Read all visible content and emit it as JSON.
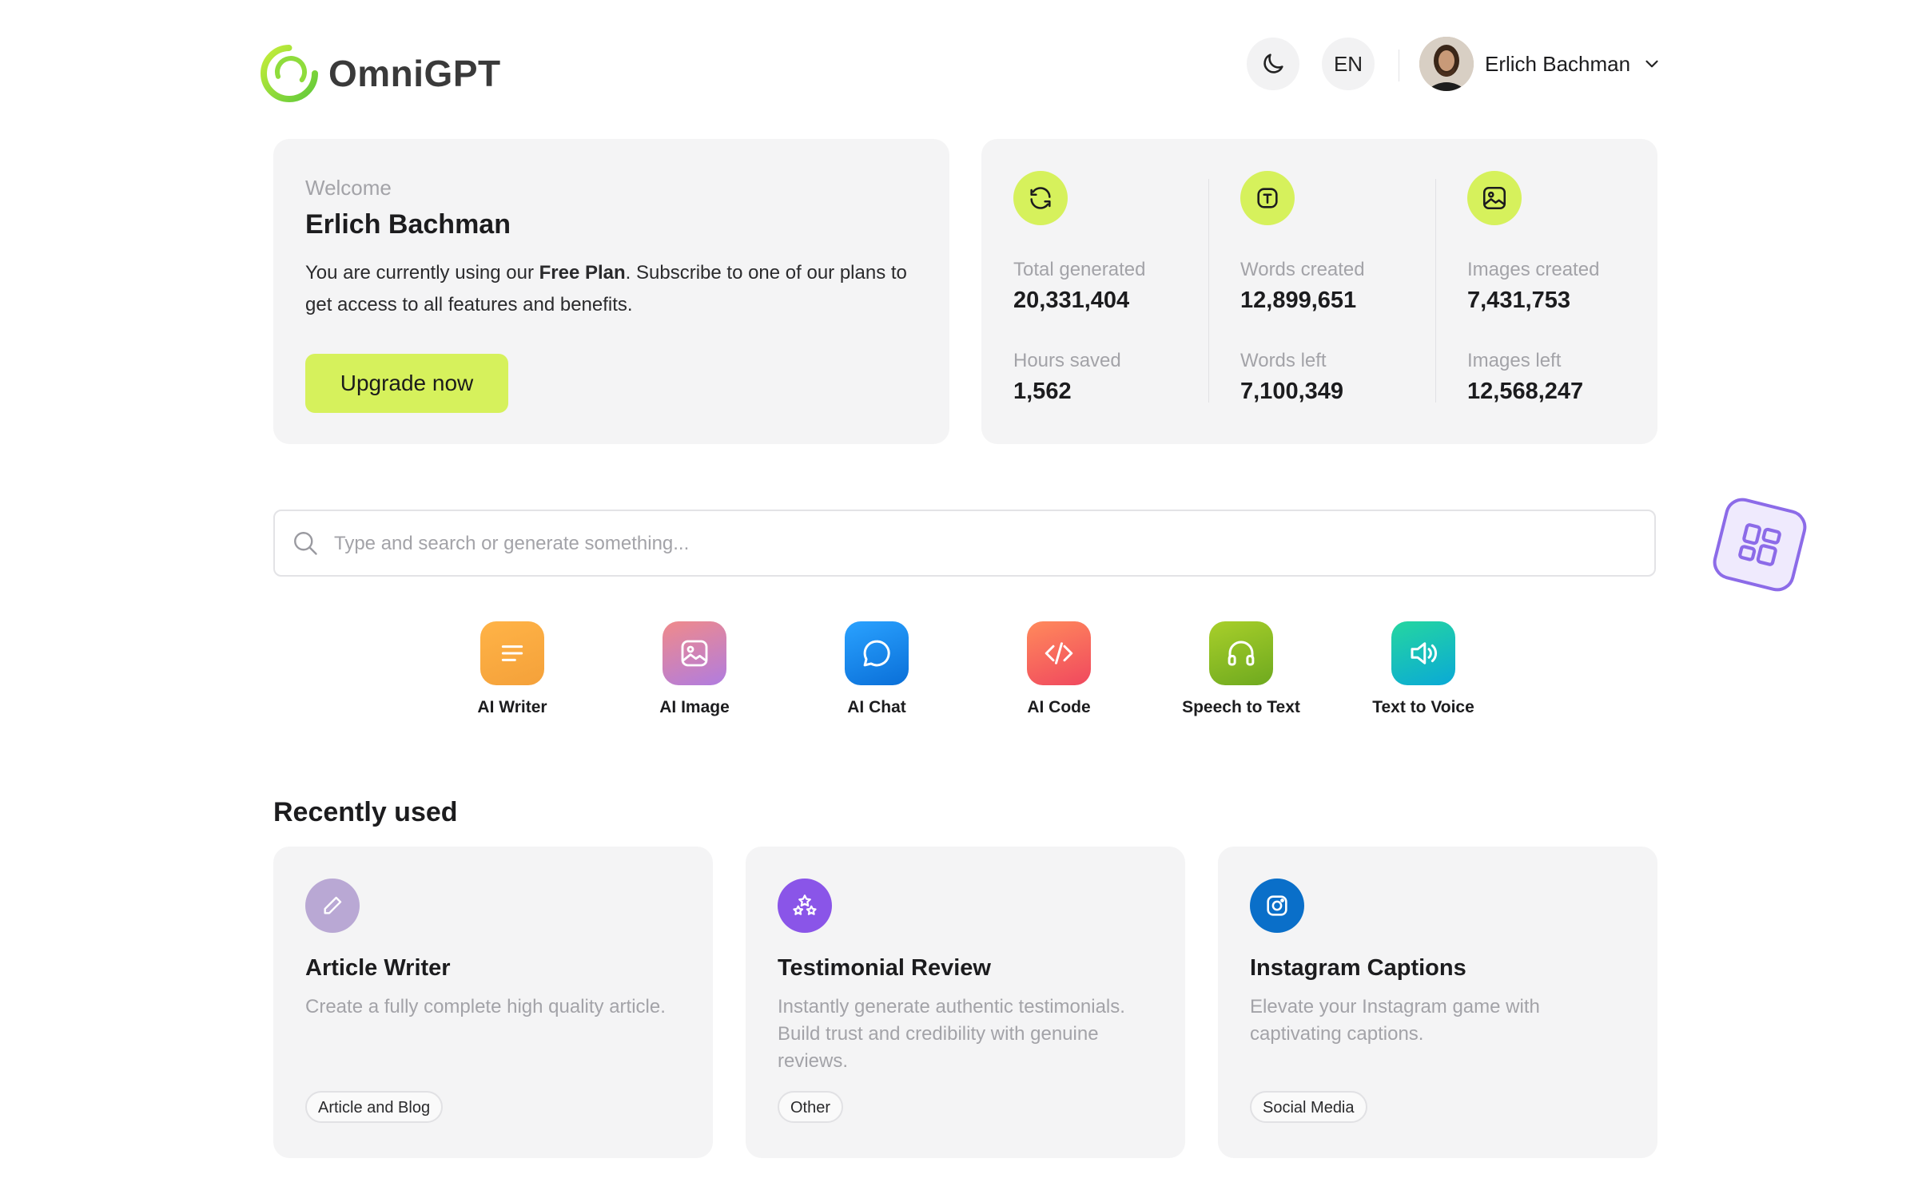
{
  "brand": {
    "name": "OmniGPT"
  },
  "header": {
    "language": "EN",
    "user_name": "Erlich Bachman",
    "theme_icon": "moon-icon"
  },
  "welcome": {
    "label": "Welcome",
    "name": "Erlich Bachman",
    "desc_prefix": "You are currently using our ",
    "plan": "Free Plan",
    "desc_suffix": ". Subscribe to one of our plans to get access to all features and benefits.",
    "upgrade_label": "Upgrade now"
  },
  "stats": [
    {
      "icon": "refresh-icon",
      "rows": [
        {
          "label": "Total generated",
          "value": "20,331,404"
        },
        {
          "label": "Hours saved",
          "value": "1,562"
        }
      ]
    },
    {
      "icon": "text-icon",
      "rows": [
        {
          "label": "Words created",
          "value": "12,899,651"
        },
        {
          "label": "Words left",
          "value": "7,100,349"
        }
      ]
    },
    {
      "icon": "image-icon",
      "rows": [
        {
          "label": "Images created",
          "value": "7,431,753"
        },
        {
          "label": "Images left",
          "value": "12,568,247"
        }
      ]
    }
  ],
  "search": {
    "placeholder": "Type and search or generate something..."
  },
  "tools": [
    {
      "label": "AI Writer",
      "icon": "lines-icon"
    },
    {
      "label": "AI Image",
      "icon": "image-icon"
    },
    {
      "label": "AI Chat",
      "icon": "chat-bubble-icon"
    },
    {
      "label": "AI Code",
      "icon": "code-icon"
    },
    {
      "label": "Speech to Text",
      "icon": "headphones-icon"
    },
    {
      "label": "Text to Voice",
      "icon": "speaker-icon"
    }
  ],
  "recent": {
    "title": "Recently used",
    "items": [
      {
        "title": "Article Writer",
        "desc": "Create a fully complete high quality article.",
        "tag": "Article and Blog",
        "icon": "pencil-icon"
      },
      {
        "title": "Testimonial Review",
        "desc": "Instantly generate authentic testimonials. Build trust and credibility with genuine reviews.",
        "tag": "Other",
        "icon": "stars-icon"
      },
      {
        "title": "Instagram Captions",
        "desc": "Elevate your Instagram game with captivating captions.",
        "tag": "Social Media",
        "icon": "instagram-icon"
      }
    ]
  },
  "colors": {
    "accent": "#d6f15c",
    "panel": "#f4f4f5",
    "floating": "#8c6be8"
  }
}
